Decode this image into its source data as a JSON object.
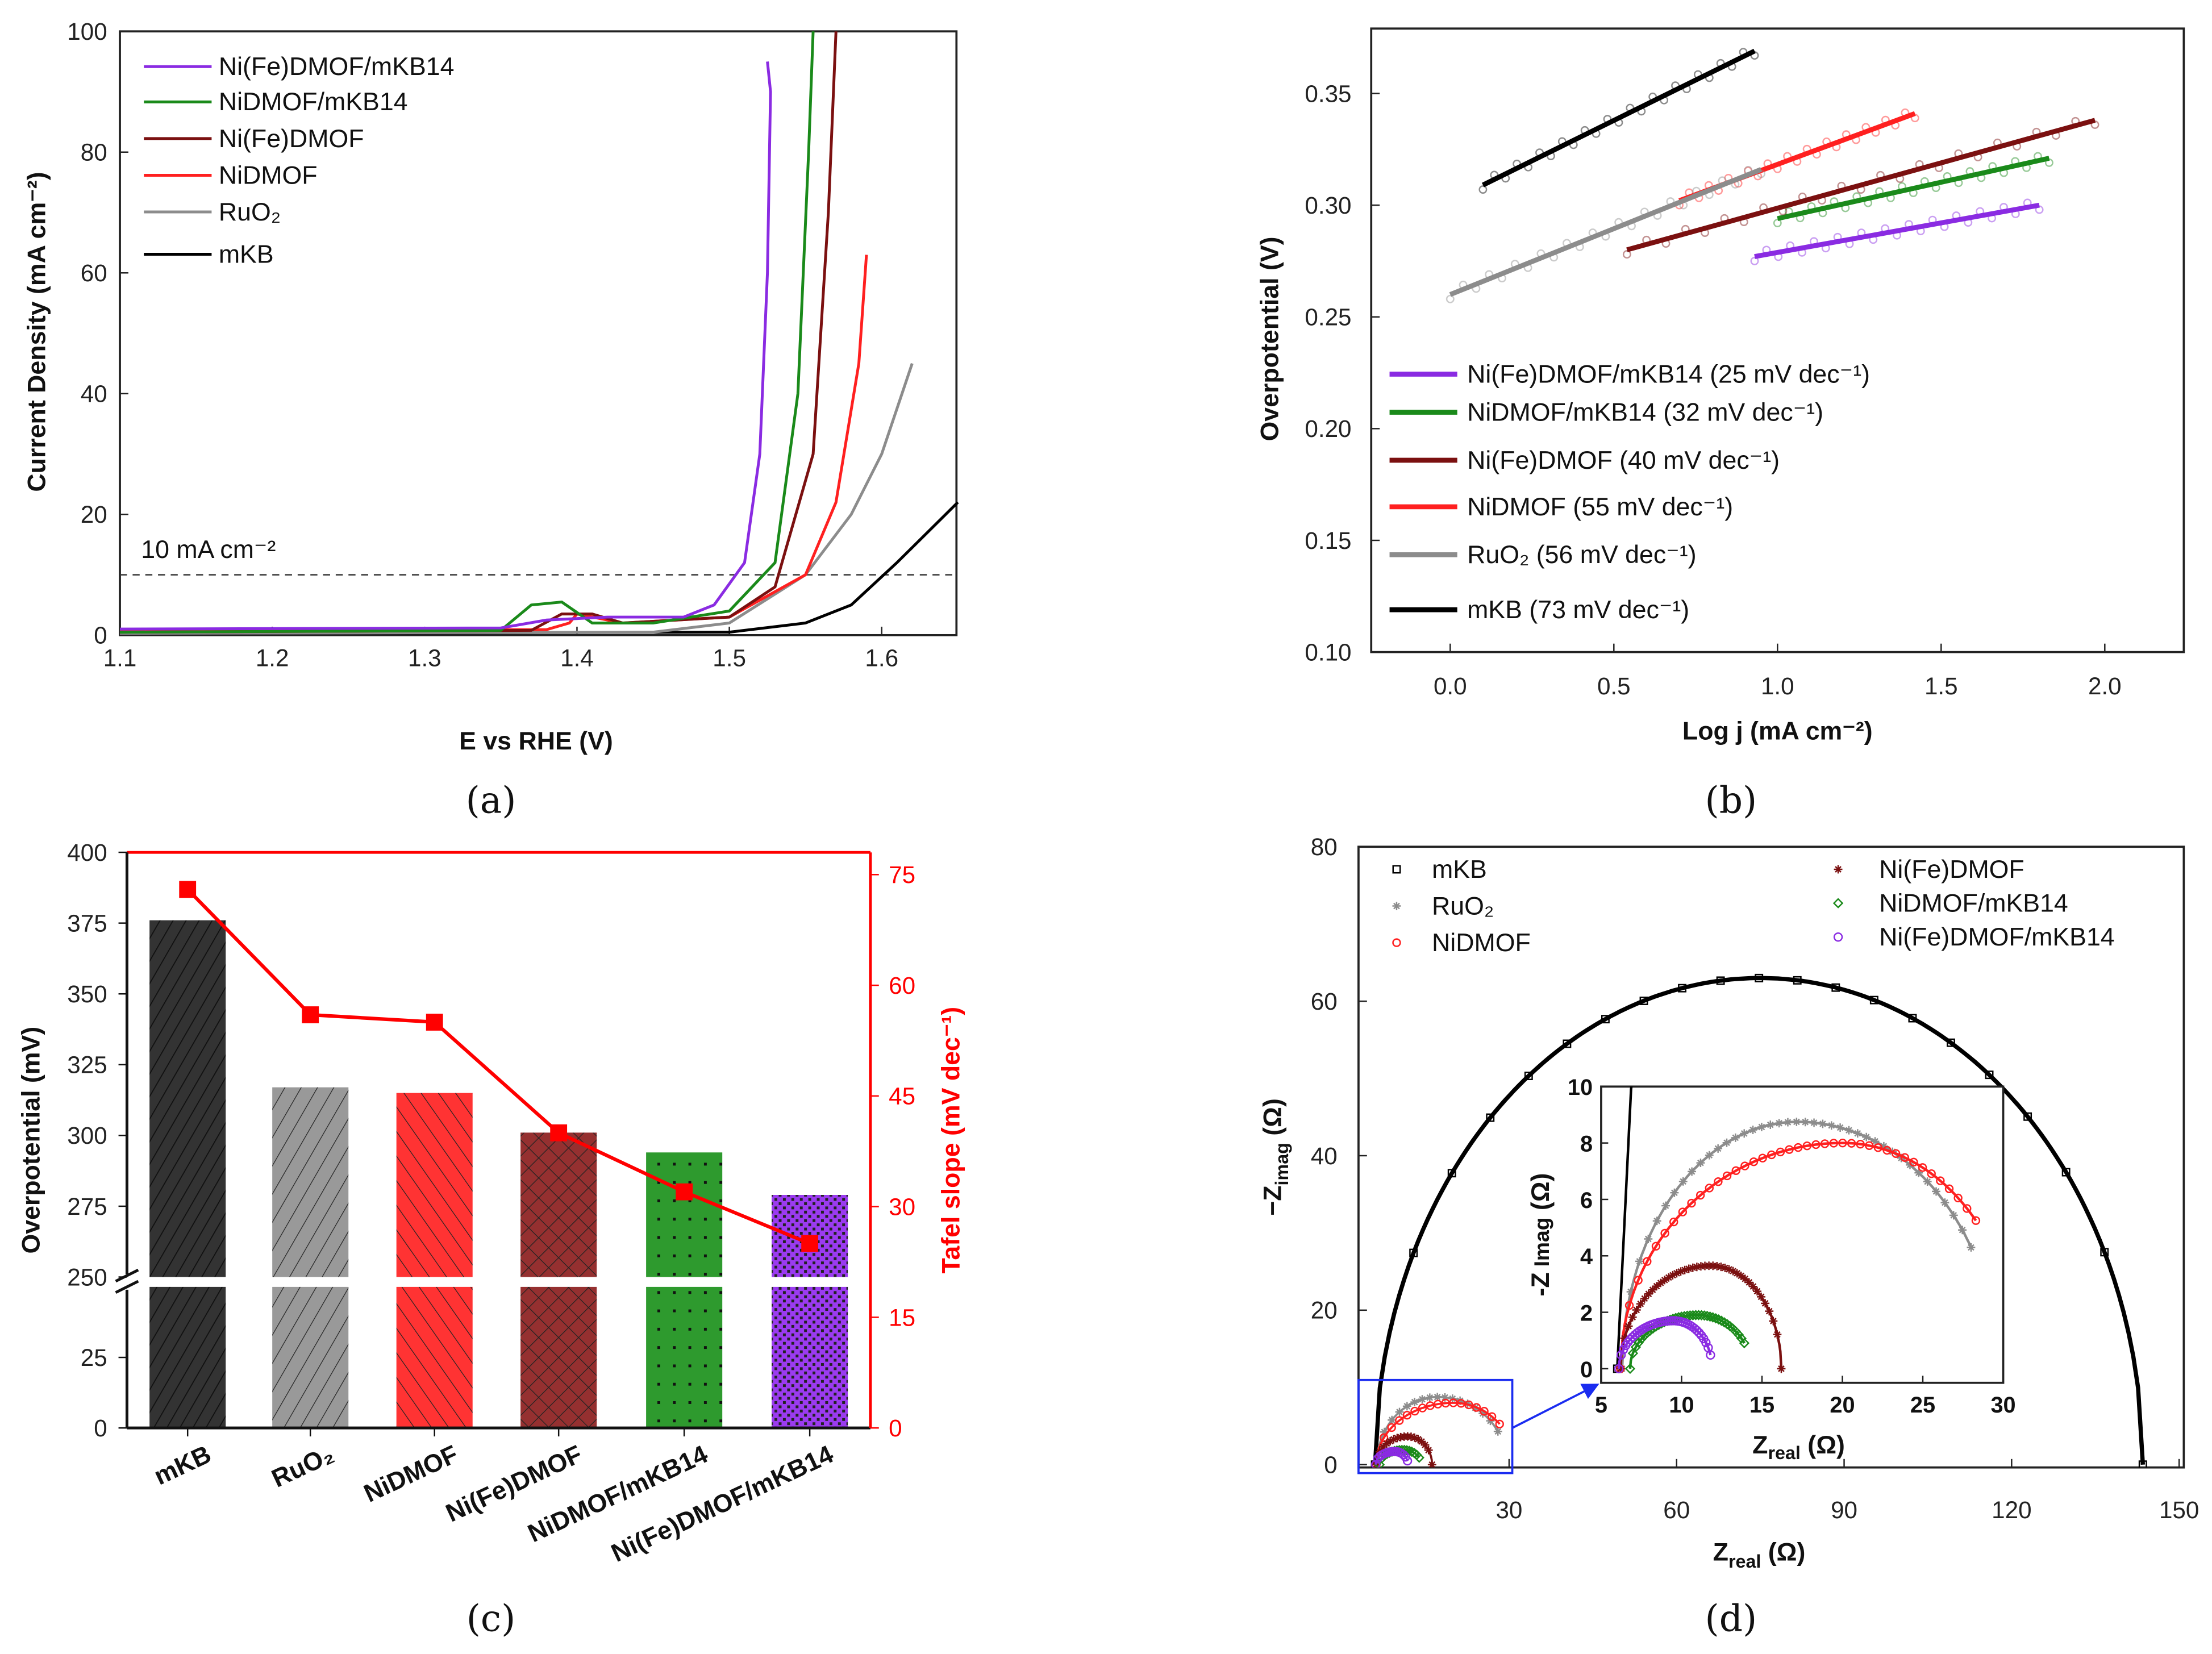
{
  "chart_data": [
    {
      "panel": "(a)",
      "type": "line",
      "xlabel": "E vs RHE (V)",
      "ylabel": "Current Density (mA cm⁻²)",
      "xlim": [
        1.1,
        1.65
      ],
      "ylim": [
        0,
        100
      ],
      "xticks": [
        "1.1",
        "1.2",
        "1.3",
        "1.4",
        "1.5",
        "1.6"
      ],
      "yticks": [
        "0",
        "20",
        "40",
        "60",
        "80",
        "100"
      ],
      "reference_line": {
        "y": 10,
        "label": "10 mA cm⁻²"
      },
      "legend_position": "top-left",
      "series": [
        {
          "name": "Ni(Fe)DMOF/mKB14",
          "color": "#8a2be2",
          "points": [
            [
              1.1,
              1
            ],
            [
              1.35,
              1.2
            ],
            [
              1.38,
              2.5
            ],
            [
              1.42,
              3
            ],
            [
              1.47,
              3
            ],
            [
              1.49,
              5
            ],
            [
              1.51,
              12
            ],
            [
              1.52,
              30
            ],
            [
              1.525,
              60
            ],
            [
              1.527,
              90
            ],
            [
              1.525,
              95
            ]
          ]
        },
        {
          "name": "NiDMOF/mKB14",
          "color": "#1a8a1a",
          "points": [
            [
              1.1,
              0.5
            ],
            [
              1.35,
              0.8
            ],
            [
              1.37,
              5
            ],
            [
              1.39,
              5.5
            ],
            [
              1.41,
              2
            ],
            [
              1.45,
              2
            ],
            [
              1.5,
              4
            ],
            [
              1.53,
              12
            ],
            [
              1.545,
              40
            ],
            [
              1.552,
              80
            ],
            [
              1.555,
              100
            ]
          ]
        },
        {
          "name": "Ni(Fe)DMOF",
          "color": "#7b1010",
          "points": [
            [
              1.1,
              0.5
            ],
            [
              1.37,
              0.8
            ],
            [
              1.39,
              3.5
            ],
            [
              1.41,
              3.5
            ],
            [
              1.43,
              2
            ],
            [
              1.5,
              3
            ],
            [
              1.53,
              8
            ],
            [
              1.555,
              30
            ],
            [
              1.565,
              70
            ],
            [
              1.57,
              100
            ]
          ]
        },
        {
          "name": "NiDMOF",
          "color": "#ff2020",
          "points": [
            [
              1.1,
              0.8
            ],
            [
              1.38,
              0.9
            ],
            [
              1.395,
              2
            ],
            [
              1.4,
              3.5
            ],
            [
              1.43,
              2
            ],
            [
              1.5,
              3
            ],
            [
              1.55,
              10
            ],
            [
              1.57,
              22
            ],
            [
              1.585,
              45
            ],
            [
              1.59,
              63
            ]
          ]
        },
        {
          "name": "RuO₂",
          "color": "#8c8c8c",
          "points": [
            [
              1.1,
              0.3
            ],
            [
              1.45,
              0.5
            ],
            [
              1.5,
              2
            ],
            [
              1.55,
              10
            ],
            [
              1.58,
              20
            ],
            [
              1.6,
              30
            ],
            [
              1.62,
              45
            ]
          ]
        },
        {
          "name": "mKB",
          "color": "#000000",
          "points": [
            [
              1.1,
              0.3
            ],
            [
              1.5,
              0.5
            ],
            [
              1.55,
              2
            ],
            [
              1.58,
              5
            ],
            [
              1.61,
              12
            ],
            [
              1.65,
              22
            ]
          ]
        }
      ]
    },
    {
      "panel": "(b)",
      "type": "line",
      "xlabel": "Log j (mA cm⁻²)",
      "ylabel": "Overpotential (V)",
      "xlim": [
        -0.25,
        2.25
      ],
      "ylim": [
        0.1,
        0.38
      ],
      "xticks": [
        "0.0",
        "0.5",
        "1.0",
        "1.5",
        "2.0"
      ],
      "yticks": [
        "0.10",
        "0.15",
        "0.20",
        "0.25",
        "0.30",
        "0.35"
      ],
      "legend_position": "bottom-left",
      "series": [
        {
          "name": "Ni(Fe)DMOF/mKB14 (25 mV dec⁻¹)",
          "color": "#8a2be2",
          "points": [
            [
              0.93,
              0.277
            ],
            [
              1.8,
              0.3
            ]
          ]
        },
        {
          "name": "NiDMOF/mKB14 (32 mV dec⁻¹)",
          "color": "#1a8a1a",
          "points": [
            [
              1.0,
              0.294
            ],
            [
              1.83,
              0.321
            ]
          ]
        },
        {
          "name": "Ni(Fe)DMOF (40 mV dec⁻¹)",
          "color": "#7b1010",
          "points": [
            [
              0.54,
              0.28
            ],
            [
              1.97,
              0.338
            ]
          ]
        },
        {
          "name": "NiDMOF (55 mV dec⁻¹)",
          "color": "#ff2020",
          "points": [
            [
              0.7,
              0.302
            ],
            [
              1.42,
              0.341
            ]
          ]
        },
        {
          "name": "RuO₂ (56 mV dec⁻¹)",
          "color": "#8c8c8c",
          "points": [
            [
              0.0,
              0.26
            ],
            [
              0.95,
              0.316
            ]
          ]
        },
        {
          "name": "mKB (73 mV dec⁻¹)",
          "color": "#000000",
          "points": [
            [
              0.1,
              0.309
            ],
            [
              0.93,
              0.369
            ]
          ]
        }
      ]
    },
    {
      "panel": "(c)",
      "type": "bar",
      "categories": [
        "mKB",
        "RuO₂",
        "NiDMOF",
        "Ni(Fe)DMOF",
        "NiDMOF/mKB14",
        "Ni(Fe)DMOF/mKB14"
      ],
      "bar_series": {
        "name": "Overpotential (mV)",
        "values": [
          376,
          317,
          315,
          301,
          294,
          279
        ],
        "colors": [
          "#333333",
          "#999999",
          "#ff3333",
          "#953030",
          "#2e9a2e",
          "#9b3bf0"
        ]
      },
      "line_series": {
        "name": "Tafel slope (mV dec⁻¹)",
        "values": [
          73,
          56,
          55,
          40,
          32,
          25
        ],
        "color": "#ff0000"
      },
      "ylabel": "Overpotential (mV)",
      "ylabel_right": "Tafel slope (mV dec⁻¹)",
      "ylim": [
        0,
        400
      ],
      "y_break": [
        50,
        250
      ],
      "ylim_right": [
        0,
        78
      ],
      "yticks": [
        "0",
        "25",
        "250",
        "275",
        "300",
        "325",
        "350",
        "375",
        "400"
      ],
      "yticks_right": [
        "0",
        "15",
        "30",
        "45",
        "60",
        "75"
      ]
    },
    {
      "panel": "(d)",
      "type": "scatter",
      "xlabel": {
        "main": "Z",
        "sub": "real",
        "unit": " (Ω)"
      },
      "ylabel": {
        "main": "−Z",
        "sub": "imag",
        "unit": " (Ω)"
      },
      "xlim": [
        3,
        150
      ],
      "ylim": [
        0,
        80
      ],
      "xticks": [
        "30",
        "60",
        "90",
        "120",
        "150"
      ],
      "yticks": [
        "0",
        "20",
        "40",
        "60",
        "80"
      ],
      "legend_position": "top",
      "series": [
        {
          "name": "mKB",
          "color": "#000000",
          "marker": "square",
          "x_start": 6.0,
          "x_peak": 75,
          "x_end": 143.5,
          "x_stop": 143.5,
          "peak": 63
        },
        {
          "name": "RuO₂",
          "color": "#8c8c8c",
          "marker": "asterisk",
          "x_start": 6.3,
          "x_peak": 17.2,
          "x_end": 29.6,
          "x_stop": 28.0,
          "peak": 8.75
        },
        {
          "name": "NiDMOF",
          "color": "#ff2020",
          "marker": "circle",
          "x_start": 6.2,
          "x_peak": 20.0,
          "x_end": 31.0,
          "x_stop": 28.3,
          "peak": 8.0
        },
        {
          "name": "Ni(Fe)DMOF",
          "color": "#7b1010",
          "marker": "star",
          "x_start": 6.2,
          "x_peak": 11.8,
          "x_end": 16.2,
          "x_stop": 16.2,
          "peak": 3.65
        },
        {
          "name": "NiDMOF/mKB14",
          "color": "#1a8a1a",
          "marker": "diamond",
          "x_start": 6.8,
          "x_peak": 11.0,
          "x_end": 14.3,
          "x_stop": 13.9,
          "peak": 1.9
        },
        {
          "name": "Ni(Fe)DMOF/mKB14",
          "color": "#8a2be2",
          "marker": "hexagon",
          "x_start": 6.1,
          "x_peak": 9.5,
          "x_end": 11.9,
          "x_stop": 11.8,
          "peak": 1.7
        }
      ],
      "inset": {
        "xlim": [
          5,
          30
        ],
        "ylim": [
          -0.5,
          10
        ],
        "xticks": [
          "5",
          "10",
          "15",
          "20",
          "25",
          "30"
        ],
        "yticks": [
          "0",
          "2",
          "4",
          "6",
          "8",
          "10"
        ],
        "xlabel": {
          "main": "Z",
          "sub": "real",
          "unit": " (Ω)"
        },
        "ylabel": {
          "main": "-Z",
          "sub": "Imag",
          "unit": " (Ω)"
        }
      }
    }
  ]
}
